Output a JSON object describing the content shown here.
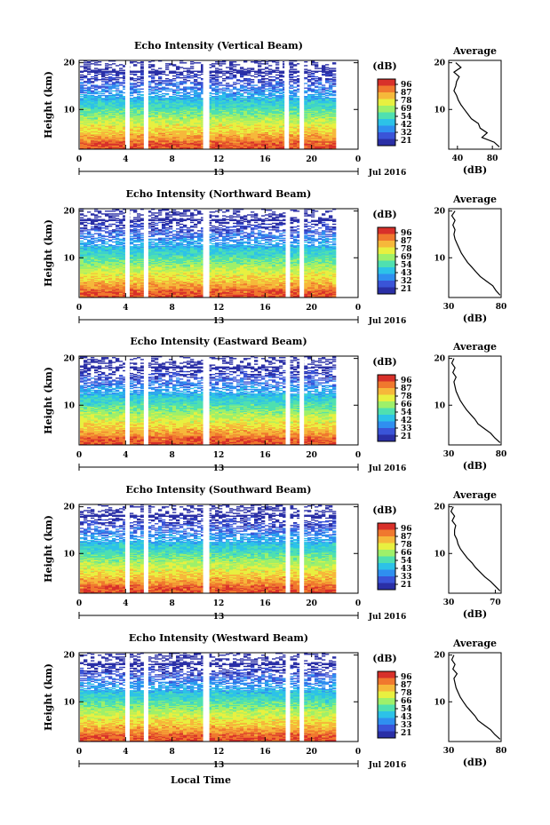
{
  "figure": {
    "date_label": "Jul 2016",
    "bottom_xlabel": "Local Time",
    "day_tick_label": "13",
    "colorbar_unit": "(dB)",
    "avg_title": "Average",
    "avg_xlabel": "(dB)",
    "ylabel": "Height (km)"
  },
  "colors": {
    "scale": [
      "#2a2fa6",
      "#3a54d8",
      "#2f8ff0",
      "#2cc2e8",
      "#4fe0b0",
      "#9ef06a",
      "#e8f040",
      "#f6b83a",
      "#f0782e",
      "#d8302a"
    ]
  },
  "chart_data": [
    {
      "type": "heatmap",
      "title": "Echo Intensity (Vertical Beam)",
      "xlabel": "",
      "ylabel": "Height (km)",
      "xlim": [
        0,
        24
      ],
      "ylim": [
        1.5,
        20.5
      ],
      "x_ticks": [
        "0",
        "4",
        "8",
        "12",
        "16",
        "20",
        "0"
      ],
      "y_ticks": [
        "20",
        "10"
      ],
      "colorbar_ticks": [
        "96",
        "87",
        "78",
        "69",
        "54",
        "42",
        "32",
        "21"
      ],
      "gaps_hours": [
        4.2,
        5.8,
        10.9,
        17.9,
        19.2
      ],
      "data_end_hour": 21.8,
      "avg_profile": {
        "xlim": [
          30,
          90
        ],
        "x_ticks": [
          "40",
          "80"
        ],
        "height_km": [
          2,
          3,
          4,
          5,
          6,
          7,
          8,
          9,
          10,
          11,
          12,
          13,
          14,
          15,
          16,
          17,
          18,
          19,
          20
        ],
        "db": [
          88,
          82,
          68,
          74,
          66,
          64,
          56,
          52,
          48,
          44,
          41,
          39,
          36,
          38,
          39,
          42,
          36,
          44,
          38
        ]
      }
    },
    {
      "type": "heatmap",
      "title": "Echo Intensity (Northward Beam)",
      "xlabel": "",
      "ylabel": "Height (km)",
      "xlim": [
        0,
        24
      ],
      "ylim": [
        1.5,
        20.5
      ],
      "x_ticks": [
        "0",
        "4",
        "8",
        "12",
        "16",
        "20",
        "0"
      ],
      "y_ticks": [
        "20",
        "10"
      ],
      "colorbar_ticks": [
        "96",
        "87",
        "78",
        "69",
        "54",
        "43",
        "32",
        "21"
      ],
      "gaps_hours": [
        4.2,
        5.8,
        10.9,
        18.0,
        19.2
      ],
      "data_end_hour": 21.8,
      "avg_profile": {
        "xlim": [
          30,
          80
        ],
        "x_ticks": [
          "30",
          "80"
        ],
        "height_km": [
          2,
          3,
          4,
          5,
          6,
          7,
          8,
          9,
          10,
          11,
          12,
          13,
          14,
          15,
          16,
          17,
          18,
          19,
          20
        ],
        "db": [
          79,
          75,
          72,
          66,
          60,
          56,
          52,
          48,
          45,
          42,
          40,
          38,
          36,
          35,
          36,
          34,
          36,
          33,
          36
        ]
      }
    },
    {
      "type": "heatmap",
      "title": "Echo Intensity (Eastward Beam)",
      "xlabel": "",
      "ylabel": "Height (km)",
      "xlim": [
        0,
        24
      ],
      "ylim": [
        1.5,
        20.5
      ],
      "x_ticks": [
        "0",
        "4",
        "8",
        "12",
        "16",
        "20",
        "0"
      ],
      "y_ticks": [
        "20",
        "10"
      ],
      "colorbar_ticks": [
        "96",
        "87",
        "78",
        "66",
        "54",
        "42",
        "33",
        "21"
      ],
      "gaps_hours": [
        4.2,
        5.8,
        10.9,
        18.0,
        19.2
      ],
      "data_end_hour": 21.8,
      "avg_profile": {
        "xlim": [
          30,
          80
        ],
        "x_ticks": [
          "30",
          "80"
        ],
        "height_km": [
          2,
          3,
          4,
          5,
          6,
          7,
          8,
          9,
          10,
          11,
          12,
          13,
          14,
          15,
          16,
          17,
          18,
          19,
          20
        ],
        "db": [
          79,
          74,
          70,
          64,
          58,
          55,
          51,
          47,
          44,
          41,
          39,
          37,
          36,
          35,
          37,
          34,
          36,
          33,
          35
        ]
      }
    },
    {
      "type": "heatmap",
      "title": "Echo Intensity (Southward Beam)",
      "xlabel": "",
      "ylabel": "Height (km)",
      "xlim": [
        0,
        24
      ],
      "ylim": [
        1.5,
        20.5
      ],
      "x_ticks": [
        "0",
        "4",
        "8",
        "12",
        "16",
        "20",
        "0"
      ],
      "y_ticks": [
        "20",
        "10"
      ],
      "colorbar_ticks": [
        "96",
        "87",
        "78",
        "66",
        "54",
        "43",
        "33",
        "21"
      ],
      "gaps_hours": [
        4.2,
        5.8,
        10.9,
        18.0,
        19.2
      ],
      "data_end_hour": 21.8,
      "avg_profile": {
        "xlim": [
          30,
          75
        ],
        "x_ticks": [
          "30",
          "70"
        ],
        "height_km": [
          2,
          3,
          4,
          5,
          6,
          7,
          8,
          9,
          10,
          11,
          12,
          13,
          14,
          15,
          16,
          17,
          18,
          19,
          20
        ],
        "db": [
          74,
          70,
          66,
          61,
          57,
          53,
          50,
          46,
          43,
          40,
          38,
          37,
          35,
          35,
          36,
          33,
          35,
          32,
          34
        ]
      }
    },
    {
      "type": "heatmap",
      "title": "Echo Intensity (Westward Beam)",
      "xlabel": "Local Time",
      "ylabel": "Height (km)",
      "xlim": [
        0,
        24
      ],
      "ylim": [
        1.5,
        20.5
      ],
      "x_ticks": [
        "0",
        "4",
        "8",
        "12",
        "16",
        "20",
        "0"
      ],
      "y_ticks": [
        "20",
        "10"
      ],
      "colorbar_ticks": [
        "96",
        "87",
        "78",
        "66",
        "54",
        "43",
        "33",
        "21"
      ],
      "gaps_hours": [
        4.2,
        5.8,
        10.9,
        18.0,
        19.2
      ],
      "data_end_hour": 21.8,
      "avg_profile": {
        "xlim": [
          30,
          80
        ],
        "x_ticks": [
          "30",
          "80"
        ],
        "height_km": [
          2,
          3,
          4,
          5,
          6,
          7,
          8,
          9,
          10,
          11,
          12,
          13,
          14,
          15,
          16,
          17,
          18,
          19,
          20
        ],
        "db": [
          79,
          74,
          70,
          64,
          58,
          55,
          51,
          47,
          44,
          41,
          39,
          37,
          36,
          35,
          38,
          34,
          36,
          33,
          35
        ]
      }
    }
  ]
}
